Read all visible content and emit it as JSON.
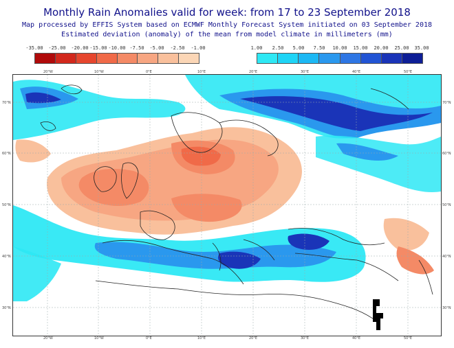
{
  "header": {
    "title": "Monthly Rain Anomalies valid for week: from 17 to 23 September 2018",
    "subtitle_1": "Map processed by EFFIS System based on ECMWF Monthly Forecast System initiated on 03 September 2018",
    "subtitle_2": "Estimated deviation (anomaly) of the mean from model climate in millimeters (mm)"
  },
  "legend_negative": {
    "labels": [
      "-35.00",
      "-25.00",
      "-20.00",
      "-15.00",
      "-10.00",
      "-7.50",
      "-5.00",
      "-2.50",
      "-1.00"
    ],
    "colors": [
      "#b00a0a",
      "#d2281c",
      "#e6462e",
      "#f06a48",
      "#f48a66",
      "#f7a682",
      "#f9c09c",
      "#fbd6b6"
    ]
  },
  "legend_positive": {
    "labels": [
      "1.00",
      "2.50",
      "5.00",
      "7.50",
      "10.00",
      "15.00",
      "20.00",
      "25.00",
      "35.00"
    ],
    "colors": [
      "#2ee8f4",
      "#1ed4f6",
      "#1cb8f4",
      "#2a98ee",
      "#2e76e4",
      "#2254d4",
      "#1a34b8",
      "#0e1e96"
    ]
  },
  "map": {
    "lon_labels_top": [
      "20°W",
      "10°W",
      "0°E",
      "10°E",
      "20°E",
      "30°E",
      "40°E",
      "50°E"
    ],
    "lon_labels_bottom": [
      "20°W",
      "10°W",
      "0°E",
      "10°E",
      "20°E",
      "30°E",
      "40°E",
      "50°E"
    ],
    "lat_labels_left": [
      "70°N",
      "60°N",
      "50°N",
      "40°N",
      "30°N"
    ],
    "lat_labels_right": [
      "70°N",
      "60°N",
      "50°N",
      "40°N",
      "30°N"
    ]
  }
}
